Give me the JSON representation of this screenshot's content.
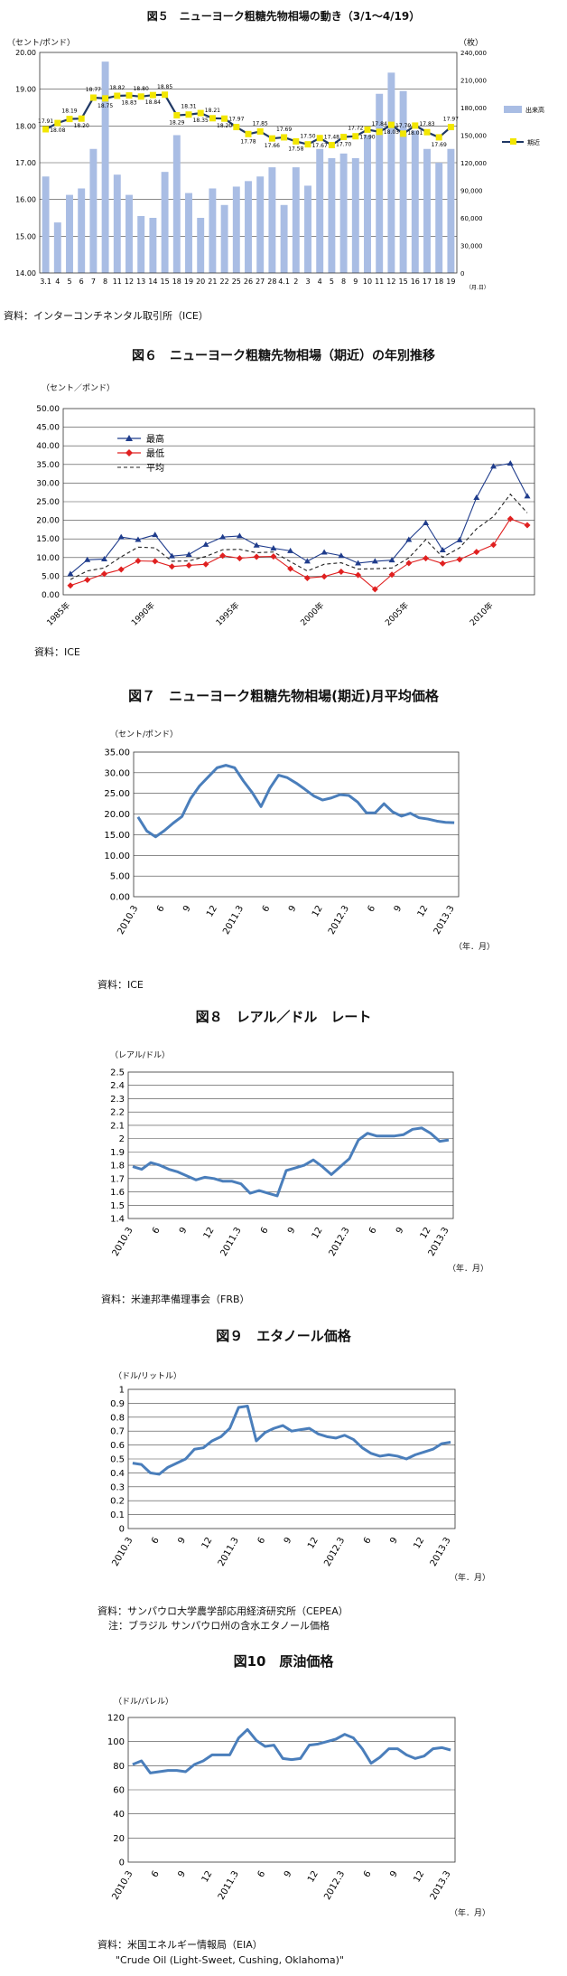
{
  "chart_data": [
    {
      "id": "fig5",
      "type": "bar+line",
      "title": "図５　ニューヨーク粗糖先物相場の動き（3/1～4/19）",
      "ylabel_left": "（セント/ポンド）",
      "ylabel_right": "（枚）",
      "xlabel": "（月.日）",
      "left_ylim": [
        14.0,
        20.0
      ],
      "left_ticks": [
        "14.00",
        "15.00",
        "16.00",
        "17.00",
        "18.00",
        "19.00",
        "20.00"
      ],
      "right_ylim": [
        0,
        240000
      ],
      "right_ticks": [
        "0",
        "30,000",
        "60,000",
        "90,000",
        "120,000",
        "150,000",
        "180,000",
        "210,000",
        "240,000"
      ],
      "categories": [
        "3.1",
        "4",
        "5",
        "6",
        "7",
        "8",
        "11",
        "12",
        "13",
        "14",
        "15",
        "18",
        "19",
        "20",
        "21",
        "22",
        "25",
        "26",
        "27",
        "28",
        "4.1",
        "2",
        "3",
        "4",
        "5",
        "8",
        "9",
        "10",
        "11",
        "12",
        "15",
        "16",
        "17",
        "18",
        "19"
      ],
      "series": [
        {
          "name": "出来高",
          "kind": "bar",
          "color": "#a9bde4",
          "values": [
            105000,
            55000,
            85000,
            92000,
            135000,
            230000,
            107000,
            85000,
            62000,
            60000,
            110000,
            150000,
            87000,
            60000,
            92000,
            74000,
            94000,
            100000,
            105000,
            115000,
            74000,
            115000,
            95000,
            135000,
            125000,
            130000,
            125000,
            150000,
            195000,
            218000,
            198000,
            155000,
            135000,
            120000,
            135000
          ]
        },
        {
          "name": "期近",
          "kind": "line",
          "color": "#1f3864",
          "marker_color": "#f2e600",
          "values": [
            17.91,
            18.08,
            18.19,
            18.2,
            18.77,
            18.75,
            18.82,
            18.83,
            18.8,
            18.84,
            18.85,
            18.29,
            18.31,
            18.35,
            18.21,
            18.2,
            17.97,
            17.78,
            17.85,
            17.66,
            17.69,
            17.58,
            17.5,
            17.67,
            17.48,
            17.7,
            17.72,
            17.9,
            17.84,
            18.03,
            17.79,
            18.01,
            17.83,
            17.69,
            17.97
          ]
        }
      ],
      "data_labels": [
        "17.91",
        "18.08",
        "18.19",
        "18.20",
        "18.77",
        "18.75",
        "18.82",
        "18.83",
        "18.80",
        "18.84",
        "18.85",
        "18.29",
        "18.31",
        "18.35",
        "18.21",
        "18.20",
        "17.97",
        "17.78",
        "17.85",
        "17.66",
        "17.69",
        "17.58",
        "17.50",
        "17.67",
        "17.48",
        "17.70",
        "17.72",
        "17.90",
        "17.84",
        "18.03",
        "17.79",
        "18.01",
        "17.83",
        "17.69",
        "17.97"
      ],
      "legend_position": "right",
      "source": "資料：インターコンチネンタル取引所（ICE）"
    },
    {
      "id": "fig6",
      "type": "line",
      "title": "図６　ニューヨーク粗糖先物相場（期近）の年別推移",
      "ylabel": "（セント／ポンド）",
      "ylim": [
        0,
        50
      ],
      "yticks": [
        "0.00",
        "5.00",
        "10.00",
        "15.00",
        "20.00",
        "25.00",
        "30.00",
        "35.00",
        "40.00",
        "45.00",
        "50.00"
      ],
      "x": [
        1985,
        1986,
        1987,
        1988,
        1989,
        1990,
        1991,
        1992,
        1993,
        1994,
        1995,
        1996,
        1997,
        1998,
        1999,
        2000,
        2001,
        2002,
        2003,
        2004,
        2005,
        2006,
        2007,
        2008,
        2009,
        2010,
        2011,
        2012
      ],
      "xticks": [
        "1985年",
        "1990年",
        "1995年",
        "2000年",
        "2005年",
        "2010年"
      ],
      "xtick_years": [
        1985,
        1990,
        1995,
        2000,
        2005,
        2010
      ],
      "series": [
        {
          "name": "最高",
          "color": "#1f3c8c",
          "marker": "triangle",
          "values": [
            5.6,
            9.4,
            9.6,
            15.5,
            14.8,
            16.1,
            10.4,
            10.8,
            13.5,
            15.5,
            15.8,
            13.3,
            12.5,
            11.8,
            9.0,
            11.4,
            10.5,
            8.5,
            9.0,
            9.3,
            14.8,
            19.3,
            12.0,
            14.7,
            26.1,
            34.5,
            35.3,
            26.5
          ]
        },
        {
          "name": "最低",
          "color": "#e02020",
          "marker": "diamond",
          "values": [
            2.5,
            4.0,
            5.6,
            6.8,
            9.1,
            9.0,
            7.6,
            7.9,
            8.2,
            10.5,
            9.8,
            10.2,
            10.3,
            7.0,
            4.5,
            4.9,
            6.2,
            5.3,
            1.5,
            5.4,
            8.5,
            9.8,
            8.4,
            9.5,
            11.5,
            13.4,
            20.4,
            18.7
          ]
        },
        {
          "name": "平均",
          "color": "#222222",
          "marker": "none",
          "dash": true,
          "values": [
            4.1,
            6.4,
            7.2,
            10.2,
            12.8,
            12.6,
            9.0,
            9.1,
            10.3,
            12.1,
            12.2,
            11.3,
            11.5,
            8.9,
            6.4,
            8.2,
            8.6,
            6.9,
            7.0,
            7.2,
            9.9,
            14.8,
            10.1,
            12.6,
            17.7,
            21.0,
            27.0,
            22.0
          ]
        }
      ],
      "legend_position": "top-left",
      "source": "資料：ICE"
    },
    {
      "id": "fig7",
      "type": "line",
      "title": "図７　ニューヨーク粗糖先物相場(期近)月平均価格",
      "ylabel": "（セント/ポンド）",
      "xlabel": "（年．月）",
      "ylim": [
        0,
        35
      ],
      "yticks": [
        "0.00",
        "5.00",
        "10.00",
        "15.00",
        "20.00",
        "25.00",
        "30.00",
        "35.00"
      ],
      "xticks": [
        "2010.3",
        "6",
        "9",
        "12",
        "2011.3",
        "6",
        "9",
        "12",
        "2012.3",
        "6",
        "9",
        "12",
        "2013.3"
      ],
      "series": [
        {
          "name": "",
          "color": "#4a7ebb",
          "values": [
            19.3,
            15.9,
            14.5,
            16.0,
            17.8,
            19.4,
            23.8,
            26.8,
            29.0,
            31.2,
            31.8,
            31.2,
            28.0,
            25.2,
            21.8,
            26.2,
            29.4,
            28.8,
            27.5,
            26.0,
            24.4,
            23.4,
            23.9,
            24.7,
            24.5,
            22.9,
            20.3,
            20.3,
            22.5,
            20.5,
            19.5,
            20.2,
            19.1,
            18.8,
            18.3,
            18.0,
            17.9
          ]
        }
      ],
      "source": "資料：ICE"
    },
    {
      "id": "fig8",
      "type": "line",
      "title": "図８　レアル／ドル　レート",
      "ylabel": "（レアル/ドル）",
      "xlabel": "（年．月）",
      "ylim": [
        1.4,
        2.5
      ],
      "yticks": [
        "1.4",
        "1.5",
        "1.6",
        "1.7",
        "1.8",
        "1.9",
        "2",
        "2.1",
        "2.2",
        "2.3",
        "2.4",
        "2.5"
      ],
      "xticks": [
        "2010.3",
        "6",
        "9",
        "12",
        "2011.3",
        "6",
        "9",
        "12",
        "2012.3",
        "6",
        "9",
        "12",
        "2013.3"
      ],
      "series": [
        {
          "name": "",
          "color": "#4a7ebb",
          "values": [
            1.79,
            1.77,
            1.82,
            1.8,
            1.77,
            1.75,
            1.72,
            1.69,
            1.71,
            1.7,
            1.68,
            1.68,
            1.66,
            1.59,
            1.61,
            1.59,
            1.57,
            1.76,
            1.78,
            1.8,
            1.84,
            1.79,
            1.73,
            1.79,
            1.85,
            1.99,
            2.04,
            2.02,
            2.02,
            2.02,
            2.03,
            2.07,
            2.08,
            2.04,
            1.98,
            1.99
          ]
        }
      ],
      "source": "資料：米連邦準備理事会（FRB）"
    },
    {
      "id": "fig9",
      "type": "line",
      "title": "図９　エタノール価格",
      "ylabel": "（ドル/リットル）",
      "xlabel": "（年．月）",
      "ylim": [
        0,
        1.0
      ],
      "yticks": [
        "0",
        "0.1",
        "0.2",
        "0.3",
        "0.4",
        "0.5",
        "0.6",
        "0.7",
        "0.8",
        "0.9",
        "1"
      ],
      "xticks": [
        "2010.3",
        "6",
        "9",
        "12",
        "2011.3",
        "6",
        "9",
        "12",
        "2012.3",
        "6",
        "9",
        "12",
        "2013.3"
      ],
      "series": [
        {
          "name": "",
          "color": "#4a7ebb",
          "values": [
            0.47,
            0.46,
            0.4,
            0.39,
            0.44,
            0.47,
            0.5,
            0.57,
            0.58,
            0.63,
            0.66,
            0.72,
            0.87,
            0.88,
            0.63,
            0.69,
            0.72,
            0.74,
            0.7,
            0.71,
            0.72,
            0.68,
            0.66,
            0.65,
            0.67,
            0.64,
            0.58,
            0.54,
            0.52,
            0.53,
            0.52,
            0.5,
            0.53,
            0.55,
            0.57,
            0.61,
            0.62
          ]
        }
      ],
      "source": "資料：サンパウロ大学農学部応用経済研究所（CEPEA）",
      "note": "注：ブラジル サンパウロ州の含水エタノール価格"
    },
    {
      "id": "fig10",
      "type": "line",
      "title": "図10　原油価格",
      "ylabel": "（ドル/バレル）",
      "xlabel": "（年．月）",
      "ylim": [
        0,
        120
      ],
      "yticks": [
        "0",
        "20",
        "40",
        "60",
        "80",
        "100",
        "120"
      ],
      "xticks": [
        "2010.3",
        "6",
        "9",
        "12",
        "2011.3",
        "6",
        "9",
        "12",
        "2012.3",
        "6",
        "9",
        "12",
        "2013.3"
      ],
      "series": [
        {
          "name": "",
          "color": "#4a7ebb",
          "values": [
            81,
            84,
            74,
            75,
            76,
            76,
            75,
            81,
            84,
            89,
            89,
            89,
            103,
            110,
            101,
            96,
            97,
            86,
            85,
            86,
            97,
            98,
            100,
            102,
            106,
            103,
            94,
            82,
            87,
            94,
            94,
            89,
            86,
            88,
            94,
            95,
            93
          ]
        }
      ],
      "source": "資料：米国エネルギー情報局（EIA）",
      "note": "\"Crude Oil (Light-Sweet, Cushing, Oklahoma)\""
    }
  ]
}
